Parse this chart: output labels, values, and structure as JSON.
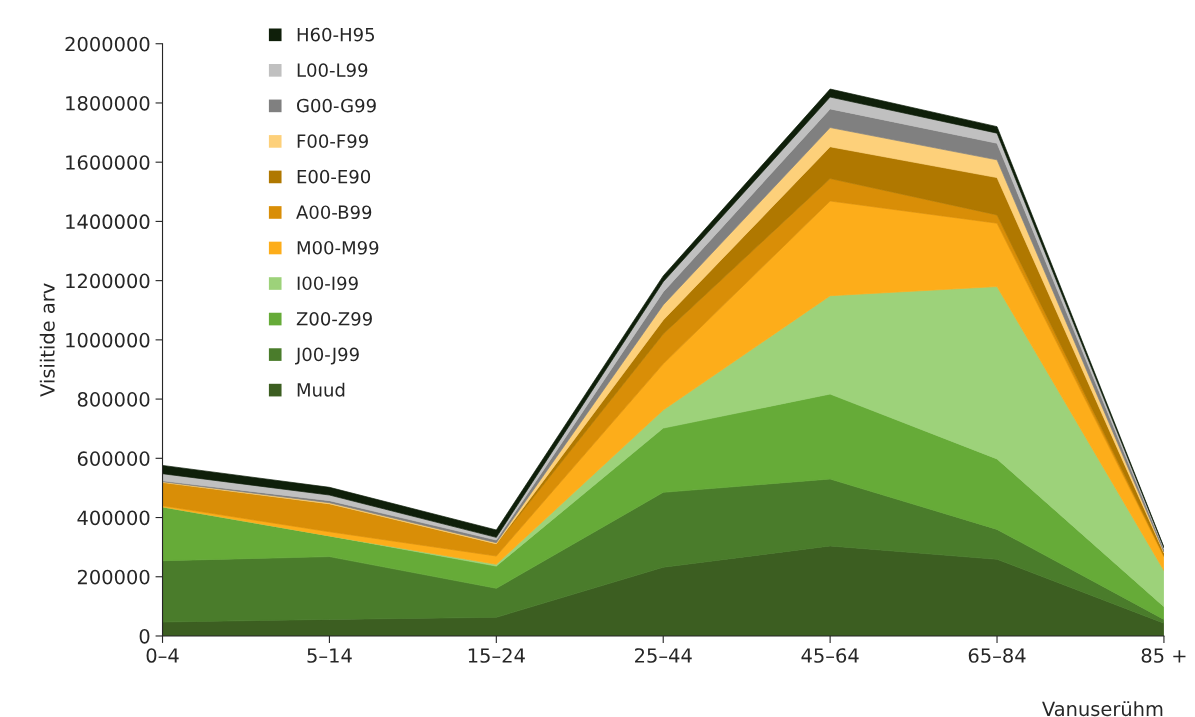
{
  "chart_data": {
    "type": "area",
    "stacked": true,
    "xlabel": "Vanuserühm",
    "ylabel": "Visiitide arv",
    "categories": [
      "0–4",
      "5–14",
      "15–24",
      "25–44",
      "45–64",
      "65–84",
      "85 +"
    ],
    "ylim": [
      0,
      2000000
    ],
    "yticks": [
      0,
      200000,
      400000,
      600000,
      800000,
      1000000,
      1200000,
      1400000,
      1600000,
      1800000,
      2000000
    ],
    "grid": false,
    "legend": "top left",
    "series": [
      {
        "name": "Muud",
        "color": "#3c5e21",
        "values": [
          47000,
          56000,
          63000,
          232000,
          304000,
          259000,
          43000
        ]
      },
      {
        "name": "J00-J99",
        "color": "#4a7c2b",
        "values": [
          207000,
          212000,
          98000,
          253000,
          226000,
          101000,
          13000
        ]
      },
      {
        "name": "Z00-Z99",
        "color": "#66ab38",
        "values": [
          182000,
          70000,
          75000,
          217000,
          287000,
          238000,
          43000
        ]
      },
      {
        "name": "I00-I99",
        "color": "#9dd27a",
        "values": [
          0,
          0,
          6000,
          61000,
          332000,
          582000,
          122000
        ]
      },
      {
        "name": "M00-M99",
        "color": "#fdad1a",
        "values": [
          4000,
          14000,
          28000,
          156000,
          320000,
          214000,
          47000
        ]
      },
      {
        "name": "A00-B99",
        "color": "#d98e07",
        "values": [
          78000,
          94000,
          41000,
          101000,
          76000,
          28000,
          4000
        ]
      },
      {
        "name": "E00-E90",
        "color": "#b07800",
        "values": [
          0,
          0,
          0,
          47000,
          107000,
          126000,
          8000
        ]
      },
      {
        "name": "F00-F99",
        "color": "#fdd07a",
        "values": [
          3000,
          4000,
          4000,
          51000,
          65000,
          60000,
          4000
        ]
      },
      {
        "name": "G00-G99",
        "color": "#808080",
        "values": [
          3000,
          7000,
          9000,
          44000,
          63000,
          56000,
          9000
        ]
      },
      {
        "name": "L00-L99",
        "color": "#c0c0c0",
        "values": [
          24000,
          19000,
          9000,
          34000,
          40000,
          34000,
          5000
        ]
      },
      {
        "name": "H60-H95",
        "color": "#0f1f0a",
        "values": [
          28000,
          26000,
          25000,
          20000,
          27000,
          22000,
          2000
        ]
      }
    ]
  }
}
